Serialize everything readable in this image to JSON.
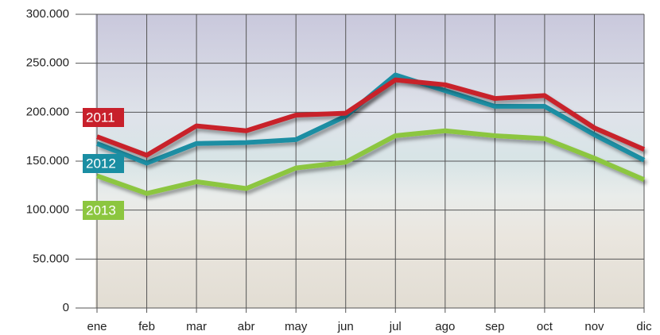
{
  "chart_data": {
    "type": "line",
    "categories": [
      "ene",
      "feb",
      "mar",
      "abr",
      "may",
      "jun",
      "jul",
      "ago",
      "sep",
      "oct",
      "nov",
      "dic"
    ],
    "series": [
      {
        "name": "2011",
        "color": "#c8202b",
        "values": [
          175000,
          156000,
          186000,
          181000,
          197000,
          199000,
          233000,
          228000,
          214000,
          217000,
          184000,
          162000
        ]
      },
      {
        "name": "2012",
        "color": "#1a8ea3",
        "values": [
          168000,
          148000,
          168000,
          169000,
          172000,
          196000,
          238000,
          222000,
          206000,
          206000,
          177000,
          151000
        ]
      },
      {
        "name": "2013",
        "color": "#8cc63f",
        "values": [
          135000,
          117000,
          129000,
          122000,
          143000,
          149000,
          176000,
          181000,
          176000,
          173000,
          153000,
          131000
        ]
      }
    ],
    "ylim": [
      0,
      300000
    ],
    "yticks": [
      0,
      {
        "value": 50000,
        "label": "50.000"
      },
      {
        "value": 100000,
        "label": "100.000"
      },
      {
        "value": 150000,
        "label": "150.000"
      },
      {
        "value": 200000,
        "label": "200.000"
      },
      {
        "value": 250000,
        "label": "250.000"
      },
      {
        "value": 300000,
        "label": "300.000"
      }
    ],
    "grid": true
  }
}
